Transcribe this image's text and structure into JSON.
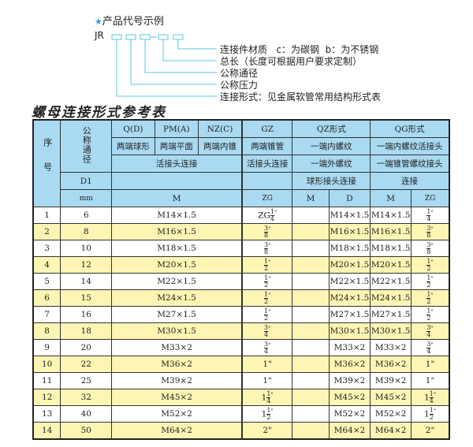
{
  "example": {
    "title": "产品代号示例",
    "star_icon": "star-icon",
    "code_prefix": "JR",
    "labels": [
      "连接件材质   c：为碳钢  b：为不锈钢",
      "总长（长度可根据用户要求定制）",
      "公称通径",
      "公称压力",
      "连接形式：见金属软管常用结构形式表"
    ],
    "line_color": "#5cc6e0"
  },
  "table_title": "螺母连接形式参考表",
  "header": {
    "seq": "序号",
    "nominal": "公称通径",
    "d1": "D1",
    "mm": "mm",
    "q": "Q(D)",
    "pm": "PM(A)",
    "nz": "NZ(C)",
    "gz": "GZ",
    "qz": "QZ形式",
    "qg": "QG形式",
    "q_desc": "两端球形",
    "pm_desc": "两端平面",
    "nz_desc": "两端内锥",
    "gz_desc": "两端锥管",
    "qz_desc1": "一端内螺纹",
    "qg_desc1": "一端内螺纹活接头",
    "union": "活接头连接",
    "gz_union": "活接头连接",
    "qz_desc2": "一端外螺纹",
    "qg_desc2": "一端锥管螺纹接头",
    "qz_desc3": "球形接头连接",
    "qg_desc3": "连接",
    "m": "M",
    "zg": "ZG",
    "qz_m": "M",
    "qz_d": "D",
    "qg_m": "M",
    "qg_zg": "ZG",
    "color": "#a9daf2"
  },
  "row_alt_color": "#fdf5b4",
  "rows": [
    {
      "no": "1",
      "d1": "6",
      "m": "M14×1.5",
      "zg": {
        "whole": "ZG",
        "num": "1",
        "den": "4",
        "unit": "\""
      },
      "qz_m": "",
      "qz_d": "M14×1.5",
      "qg_m": "M14×1.5",
      "qg_zg": {
        "whole": "",
        "num": "1",
        "den": "4",
        "unit": "\""
      }
    },
    {
      "no": "2",
      "d1": "8",
      "m": "M16×1.5",
      "zg": {
        "whole": "",
        "num": "3",
        "den": "8",
        "unit": "\""
      },
      "qz_m": "",
      "qz_d": "M16×1.5",
      "qg_m": "M16×1.5",
      "qg_zg": {
        "whole": "",
        "num": "3",
        "den": "8",
        "unit": "\""
      }
    },
    {
      "no": "3",
      "d1": "10",
      "m": "M18×1.5",
      "zg": {
        "whole": "",
        "num": "3",
        "den": "8",
        "unit": "\""
      },
      "qz_m": "",
      "qz_d": "M18×1.5",
      "qg_m": "M18×1.5",
      "qg_zg": {
        "whole": "",
        "num": "3",
        "den": "8",
        "unit": "\""
      }
    },
    {
      "no": "4",
      "d1": "12",
      "m": "M20×1.5",
      "zg": {
        "whole": "",
        "num": "1",
        "den": "2",
        "unit": "\""
      },
      "qz_m": "",
      "qz_d": "M20×1.5",
      "qg_m": "M20×1.5",
      "qg_zg": {
        "whole": "",
        "num": "1",
        "den": "2",
        "unit": "\""
      }
    },
    {
      "no": "5",
      "d1": "14",
      "m": "M22×1.5",
      "zg": {
        "whole": "",
        "num": "1",
        "den": "2",
        "unit": "\""
      },
      "qz_m": "",
      "qz_d": "M22×1.5",
      "qg_m": "M22×1.5",
      "qg_zg": {
        "whole": "",
        "num": "1",
        "den": "2",
        "unit": "\""
      }
    },
    {
      "no": "6",
      "d1": "15",
      "m": "M24×1.5",
      "zg": {
        "whole": "",
        "num": "1",
        "den": "2",
        "unit": "\""
      },
      "qz_m": "",
      "qz_d": "M24×1.5",
      "qg_m": "M24×1.5",
      "qg_zg": {
        "whole": "",
        "num": "1",
        "den": "2",
        "unit": "\""
      }
    },
    {
      "no": "7",
      "d1": "16",
      "m": "M27×1.5",
      "zg": {
        "whole": "",
        "num": "1",
        "den": "2",
        "unit": "\""
      },
      "qz_m": "",
      "qz_d": "M27×1.5",
      "qg_m": "M27×1.5",
      "qg_zg": {
        "whole": "",
        "num": "1",
        "den": "2",
        "unit": "\""
      }
    },
    {
      "no": "8",
      "d1": "18",
      "m": "M30×1.5",
      "zg": {
        "whole": "",
        "num": "3",
        "den": "4",
        "unit": "\""
      },
      "qz_m": "",
      "qz_d": "M30×1.5",
      "qg_m": "M30×1.5",
      "qg_zg": {
        "whole": "",
        "num": "3",
        "den": "4",
        "unit": "\""
      }
    },
    {
      "no": "9",
      "d1": "20",
      "m": "M33×2",
      "zg": {
        "whole": "",
        "num": "3",
        "den": "4",
        "unit": "\""
      },
      "qz_m": "",
      "qz_d": "M33×2",
      "qg_m": "M33×2",
      "qg_zg": {
        "whole": "",
        "num": "3",
        "den": "4",
        "unit": "\""
      }
    },
    {
      "no": "10",
      "d1": "22",
      "m": "M36×2",
      "zg": {
        "whole": "1\"",
        "num": "",
        "den": "",
        "unit": ""
      },
      "qz_m": "",
      "qz_d": "M36×2",
      "qg_m": "M36×2",
      "qg_zg": {
        "whole": "1\"",
        "num": "",
        "den": "",
        "unit": ""
      }
    },
    {
      "no": "11",
      "d1": "25",
      "m": "M39×2",
      "zg": {
        "whole": "1\"",
        "num": "",
        "den": "",
        "unit": ""
      },
      "qz_m": "",
      "qz_d": "M39×2",
      "qg_m": "M39×2",
      "qg_zg": {
        "whole": "1\"",
        "num": "",
        "den": "",
        "unit": ""
      }
    },
    {
      "no": "12",
      "d1": "32",
      "m": "M45×2",
      "zg": {
        "whole": "1",
        "num": "1",
        "den": "4",
        "unit": "\""
      },
      "qz_m": "",
      "qz_d": "M45×2",
      "qg_m": "M45×2",
      "qg_zg": {
        "whole": "1",
        "num": "1",
        "den": "4",
        "unit": "\""
      }
    },
    {
      "no": "13",
      "d1": "40",
      "m": "M52×2",
      "zg": {
        "whole": "1",
        "num": "1",
        "den": "2",
        "unit": "\""
      },
      "qz_m": "",
      "qz_d": "M52×2",
      "qg_m": "M52×2",
      "qg_zg": {
        "whole": "1",
        "num": "1",
        "den": "2",
        "unit": "\""
      }
    },
    {
      "no": "14",
      "d1": "50",
      "m": "M64×2",
      "zg": {
        "whole": "2\"",
        "num": "",
        "den": "",
        "unit": ""
      },
      "qz_m": "",
      "qz_d": "M64×2",
      "qg_m": "M64×2",
      "qg_zg": {
        "whole": "2\"",
        "num": "",
        "den": "",
        "unit": ""
      }
    }
  ]
}
